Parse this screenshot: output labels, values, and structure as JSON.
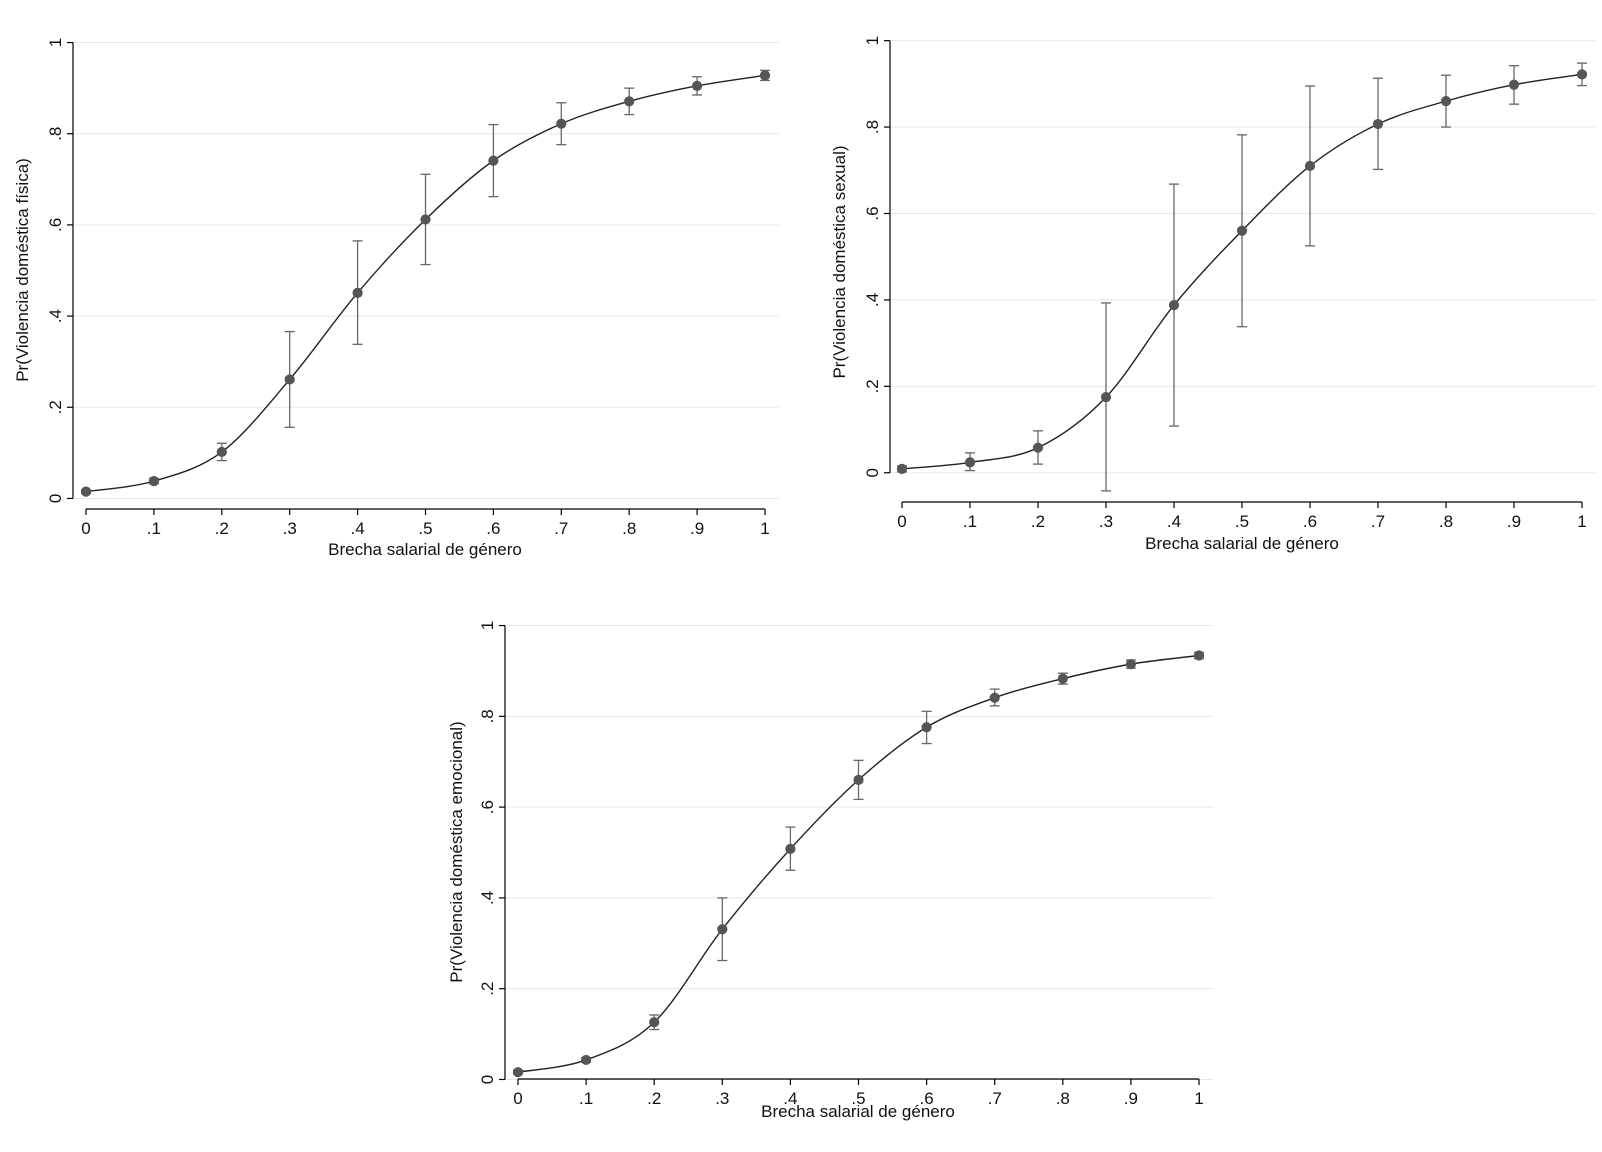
{
  "chart_data": [
    {
      "type": "line",
      "title": "",
      "xlabel": "Brecha salarial de género",
      "ylabel": "Pr(Violencia doméstica física)",
      "x": [
        0,
        0.1,
        0.2,
        0.3,
        0.4,
        0.5,
        0.6,
        0.7,
        0.8,
        0.9,
        1
      ],
      "x_tick_labels": [
        "0",
        ".1",
        ".2",
        ".3",
        ".4",
        ".5",
        ".6",
        ".7",
        ".8",
        ".9",
        "1"
      ],
      "y_ticks": [
        0,
        0.2,
        0.4,
        0.6,
        0.8,
        1
      ],
      "y_tick_labels": [
        "0",
        ".2",
        ".4",
        ".6",
        ".8",
        "1"
      ],
      "xlim": [
        0,
        1
      ],
      "ylim": [
        -0.01,
        1.01
      ],
      "grid": true,
      "series": [
        {
          "values": [
            0.015,
            0.038,
            0.102,
            0.261,
            0.451,
            0.612,
            0.741,
            0.822,
            0.871,
            0.905,
            0.928
          ],
          "ci_lower": [
            0.011,
            0.032,
            0.083,
            0.156,
            0.338,
            0.513,
            0.662,
            0.776,
            0.842,
            0.885,
            0.917
          ],
          "ci_upper": [
            0.019,
            0.044,
            0.121,
            0.366,
            0.565,
            0.711,
            0.82,
            0.868,
            0.9,
            0.925,
            0.939
          ]
        }
      ],
      "color": "#555555"
    },
    {
      "type": "line",
      "title": "",
      "xlabel": "Brecha salarial de género",
      "ylabel": "Pr(Violencia doméstica sexual)",
      "x": [
        0,
        0.1,
        0.2,
        0.3,
        0.4,
        0.5,
        0.6,
        0.7,
        0.8,
        0.9,
        1
      ],
      "x_tick_labels": [
        "0",
        ".1",
        ".2",
        ".3",
        ".4",
        ".5",
        ".6",
        ".7",
        ".8",
        ".9",
        "1"
      ],
      "y_ticks": [
        0,
        0.2,
        0.4,
        0.6,
        0.8,
        1
      ],
      "y_tick_labels": [
        "0",
        ".2",
        ".4",
        ".6",
        ".8",
        "1"
      ],
      "xlim": [
        0,
        1
      ],
      "ylim": [
        -0.07,
        1.02
      ],
      "grid": true,
      "series": [
        {
          "values": [
            0.009,
            0.024,
            0.058,
            0.175,
            0.388,
            0.56,
            0.71,
            0.807,
            0.86,
            0.898,
            0.922
          ],
          "ci_lower": [
            0.002,
            0.005,
            0.02,
            -0.042,
            0.108,
            0.338,
            0.525,
            0.702,
            0.8,
            0.853,
            0.896
          ],
          "ci_upper": [
            0.016,
            0.046,
            0.097,
            0.393,
            0.668,
            0.782,
            0.895,
            0.913,
            0.92,
            0.942,
            0.948
          ]
        }
      ],
      "color": "#555555"
    },
    {
      "type": "line",
      "title": "",
      "xlabel": "Brecha salarial de género",
      "ylabel": "Pr(Violencia doméstica emocional)",
      "x": [
        0,
        0.1,
        0.2,
        0.3,
        0.4,
        0.5,
        0.6,
        0.7,
        0.8,
        0.9,
        1
      ],
      "x_tick_labels": [
        "0",
        ".1",
        ".2",
        ".3",
        ".4",
        ".5",
        ".6",
        ".7",
        ".8",
        ".9",
        "1"
      ],
      "y_ticks": [
        0,
        0.2,
        0.4,
        0.6,
        0.8,
        1
      ],
      "y_tick_labels": [
        "0",
        ".2",
        ".4",
        ".6",
        ".8",
        "1"
      ],
      "xlim": [
        0,
        1
      ],
      "ylim": [
        -0.01,
        1.01
      ],
      "grid": true,
      "series": [
        {
          "values": [
            0.016,
            0.043,
            0.126,
            0.331,
            0.508,
            0.66,
            0.776,
            0.841,
            0.883,
            0.915,
            0.934
          ],
          "ci_lower": [
            0.012,
            0.038,
            0.11,
            0.262,
            0.461,
            0.617,
            0.74,
            0.823,
            0.871,
            0.906,
            0.927
          ],
          "ci_upper": [
            0.02,
            0.048,
            0.142,
            0.4,
            0.556,
            0.703,
            0.811,
            0.86,
            0.895,
            0.924,
            0.941
          ]
        }
      ],
      "color": "#555555"
    }
  ]
}
